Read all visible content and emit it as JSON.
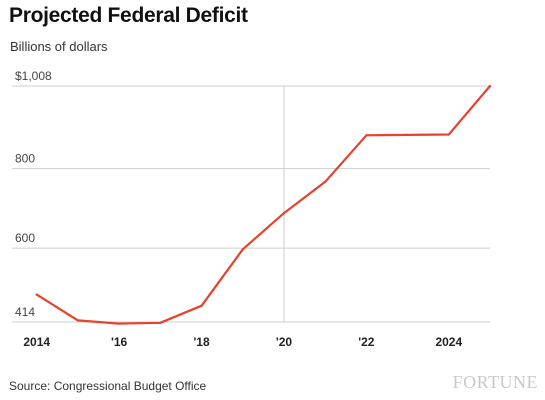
{
  "chart_data": {
    "type": "line",
    "title": "Projected Federal Deficit",
    "subtitle": "Billions of dollars",
    "x": [
      2014,
      2015,
      2016,
      2017,
      2018,
      2019,
      2020,
      2021,
      2022,
      2023,
      2024,
      2025
    ],
    "series": [
      {
        "values": [
          483,
          418,
          410,
          412,
          455,
          597,
          688,
          767,
          884,
          885,
          886,
          1008
        ]
      }
    ],
    "xticks": [
      {
        "value": 2014,
        "label": "2014"
      },
      {
        "value": 2016,
        "label": "'16"
      },
      {
        "value": 2018,
        "label": "'18"
      },
      {
        "value": 2020,
        "label": "'20"
      },
      {
        "value": 2022,
        "label": "'22"
      },
      {
        "value": 2024,
        "label": "2024"
      }
    ],
    "yticks": [
      {
        "value": 1008,
        "label": "$1,008"
      },
      {
        "value": 800,
        "label": "800"
      },
      {
        "value": 600,
        "label": "600"
      },
      {
        "value": 414,
        "label": "414"
      }
    ],
    "xlim": [
      2013.4,
      2025
    ],
    "ylim": [
      414,
      1008
    ],
    "highlight_x": 2020,
    "grid": true,
    "line_color": "#e8412c",
    "grid_color": "#cfcfcf"
  },
  "footer": {
    "source": "Source: Congressional Budget Office",
    "brand": "FORTUNE"
  }
}
